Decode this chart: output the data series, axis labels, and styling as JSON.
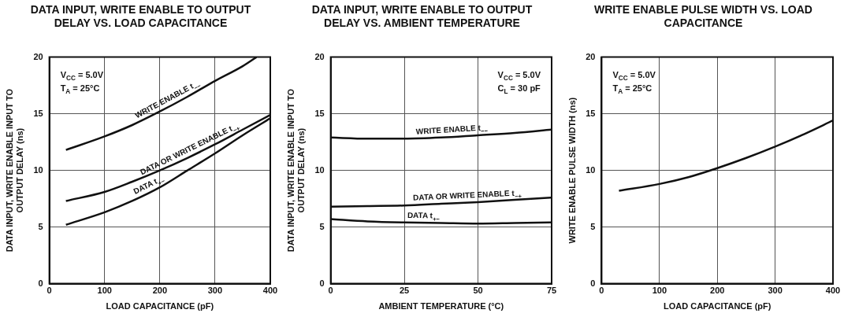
{
  "chart_data": [
    {
      "type": "line",
      "title": "DATA INPUT, WRITE ENABLE TO OUTPUT DELAY VS. LOAD CAPACITANCE",
      "xlabel": "LOAD CAPACITANCE (pF)",
      "ylabel": "DATA INPUT, WRITE ENABLE INPUT TO OUTPUT DELAY (ns)",
      "xlim": [
        0,
        400
      ],
      "xticks": [
        0,
        100,
        200,
        300,
        400
      ],
      "ylim": [
        0,
        20
      ],
      "yticks": [
        0,
        5,
        10,
        15,
        20
      ],
      "grid": true,
      "annotations": [
        "V$_{CC}$ = 5.0V",
        "T$_{A}$ = 25°C"
      ],
      "series": [
        {
          "name": "WRITE ENABLE t$_{−−}$",
          "color": "#111111",
          "x": [
            30,
            100,
            150,
            200,
            250,
            300,
            350,
            375
          ],
          "values": [
            11.8,
            13,
            14,
            15.2,
            16.5,
            17.9,
            19.2,
            20
          ]
        },
        {
          "name": "DATA OR WRITE ENABLE t$_{−+}$",
          "color": "#111111",
          "x": [
            30,
            100,
            150,
            200,
            250,
            300,
            350,
            400
          ],
          "values": [
            7.3,
            8.1,
            9,
            10,
            11.1,
            12.3,
            13.6,
            14.9
          ]
        },
        {
          "name": "DATA t$_{+−}$",
          "color": "#111111",
          "x": [
            30,
            100,
            150,
            200,
            250,
            300,
            350,
            400
          ],
          "values": [
            5.2,
            6.3,
            7.3,
            8.5,
            10,
            11.5,
            13.1,
            14.6
          ]
        }
      ]
    },
    {
      "type": "line",
      "title": "DATA INPUT, WRITE ENABLE TO OUTPUT DELAY VS. AMBIENT TEMPERATURE",
      "xlabel": "AMBIENT TEMPERATURE (°C)",
      "ylabel": "DATA INPUT, WRITE ENABLE INPUT TO OUTPUT DELAY (ns)",
      "xlim": [
        0,
        75
      ],
      "xticks": [
        0,
        25,
        50,
        75
      ],
      "ylim": [
        0,
        20
      ],
      "yticks": [
        0,
        5,
        10,
        15,
        20
      ],
      "grid": true,
      "annotations": [
        "V$_{CC}$ = 5.0V",
        "C$_{L}$ = 30 pF"
      ],
      "series": [
        {
          "name": "WRITE ENABLE t$_{−−}$",
          "color": "#111111",
          "x": [
            0,
            12.5,
            25,
            37.5,
            50,
            62.5,
            75
          ],
          "values": [
            12.9,
            12.8,
            12.8,
            12.9,
            13.1,
            13.3,
            13.6
          ]
        },
        {
          "name": "DATA OR WRITE ENABLE t$_{−+}$",
          "color": "#111111",
          "x": [
            0,
            12.5,
            25,
            37.5,
            50,
            62.5,
            75
          ],
          "values": [
            6.8,
            6.85,
            6.9,
            7.05,
            7.2,
            7.4,
            7.6
          ]
        },
        {
          "name": "DATA t$_{+−}$",
          "color": "#111111",
          "x": [
            0,
            12.5,
            25,
            37.5,
            50,
            62.5,
            75
          ],
          "values": [
            5.7,
            5.5,
            5.4,
            5.35,
            5.3,
            5.35,
            5.4
          ]
        }
      ]
    },
    {
      "type": "line",
      "title": "WRITE ENABLE PULSE WIDTH VS. LOAD CAPACITANCE",
      "xlabel": "LOAD CAPACITANCE (pF)",
      "ylabel": "WRITE ENABLE PULSE WIDTH (ns)",
      "xlim": [
        0,
        400
      ],
      "xticks": [
        0,
        100,
        200,
        300,
        400
      ],
      "ylim": [
        0,
        20
      ],
      "yticks": [
        0,
        5,
        10,
        15,
        20
      ],
      "grid": true,
      "annotations": [
        "V$_{CC}$ = 5.0V",
        "T$_{A}$ = 25°C"
      ],
      "series": [
        {
          "color": "#111111",
          "x": [
            30,
            100,
            150,
            200,
            250,
            300,
            350,
            400
          ],
          "values": [
            8.2,
            8.8,
            9.4,
            10.2,
            11.1,
            12.1,
            13.2,
            14.4
          ]
        }
      ]
    }
  ]
}
